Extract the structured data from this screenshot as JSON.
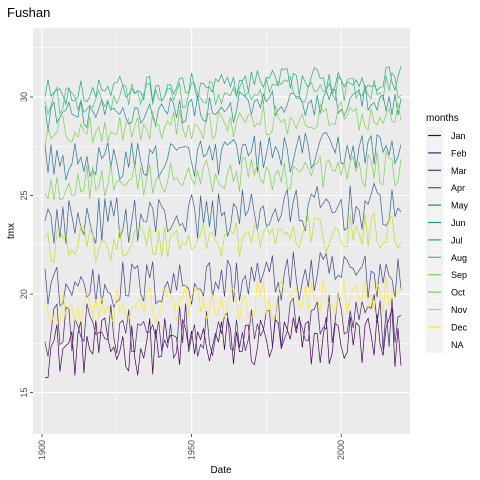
{
  "chart_data": {
    "type": "line",
    "title": "Fushan",
    "xlabel": "Date",
    "ylabel": "tmx",
    "xlim": [
      1897,
      2023
    ],
    "ylim": [
      12.9,
      33.5
    ],
    "x_ticks": [
      "1900",
      "1950",
      "2000"
    ],
    "x_tick_values": [
      1900,
      1950,
      2000
    ],
    "y_ticks": [
      "15",
      "20",
      "25",
      "30"
    ],
    "y_tick_values": [
      15,
      20,
      25,
      30
    ],
    "grid": true,
    "panel_background": "#ebebeb",
    "legend": {
      "title": "months",
      "position": "right"
    },
    "x_range": [
      1901,
      2020
    ],
    "series": [
      {
        "name": "Jan",
        "color": "#440154",
        "base": 17.2,
        "trend": 0.6,
        "amp": 1.5,
        "min": 14.3,
        "max": 19.8
      },
      {
        "name": "Feb",
        "color": "#482576",
        "base": 18.0,
        "trend": 0.7,
        "amp": 1.5,
        "min": 13.8,
        "max": 21.5
      },
      {
        "name": "Mar",
        "color": "#414487",
        "base": 20.3,
        "trend": 0.8,
        "amp": 1.3,
        "min": 16.3,
        "max": 24.0
      },
      {
        "name": "Apr",
        "color": "#35608D",
        "base": 23.6,
        "trend": 0.9,
        "amp": 1.2,
        "min": 20.3,
        "max": 27.8
      },
      {
        "name": "May",
        "color": "#2A788E",
        "base": 26.6,
        "trend": 0.8,
        "amp": 1.0,
        "min": 24.3,
        "max": 30.3
      },
      {
        "name": "Jun",
        "color": "#21908C",
        "base": 29.0,
        "trend": 0.9,
        "amp": 0.8,
        "min": 27.2,
        "max": 31.8
      },
      {
        "name": "Jul",
        "color": "#22A884",
        "base": 30.2,
        "trend": 0.8,
        "amp": 0.7,
        "min": 28.3,
        "max": 32.3
      },
      {
        "name": "Aug",
        "color": "#43BF71",
        "base": 29.8,
        "trend": 0.8,
        "amp": 0.7,
        "min": 27.6,
        "max": 31.7
      },
      {
        "name": "Sep",
        "color": "#7AD151",
        "base": 28.3,
        "trend": 0.8,
        "amp": 0.8,
        "min": 26.2,
        "max": 30.7
      },
      {
        "name": "Oct",
        "color": "#7AD151",
        "base": 25.6,
        "trend": 0.8,
        "amp": 0.9,
        "min": 23.3,
        "max": 28.7
      },
      {
        "name": "Nov",
        "color": "#BBDF27",
        "base": 22.5,
        "trend": 0.7,
        "amp": 1.0,
        "min": 20.3,
        "max": 25.3
      },
      {
        "name": "Dec",
        "color": "#FDE725",
        "base": 19.3,
        "trend": 0.6,
        "amp": 1.0,
        "min": 17.3,
        "max": 22.2
      }
    ],
    "legend_na": {
      "name": "NA",
      "color": "#bfbfbf"
    }
  }
}
